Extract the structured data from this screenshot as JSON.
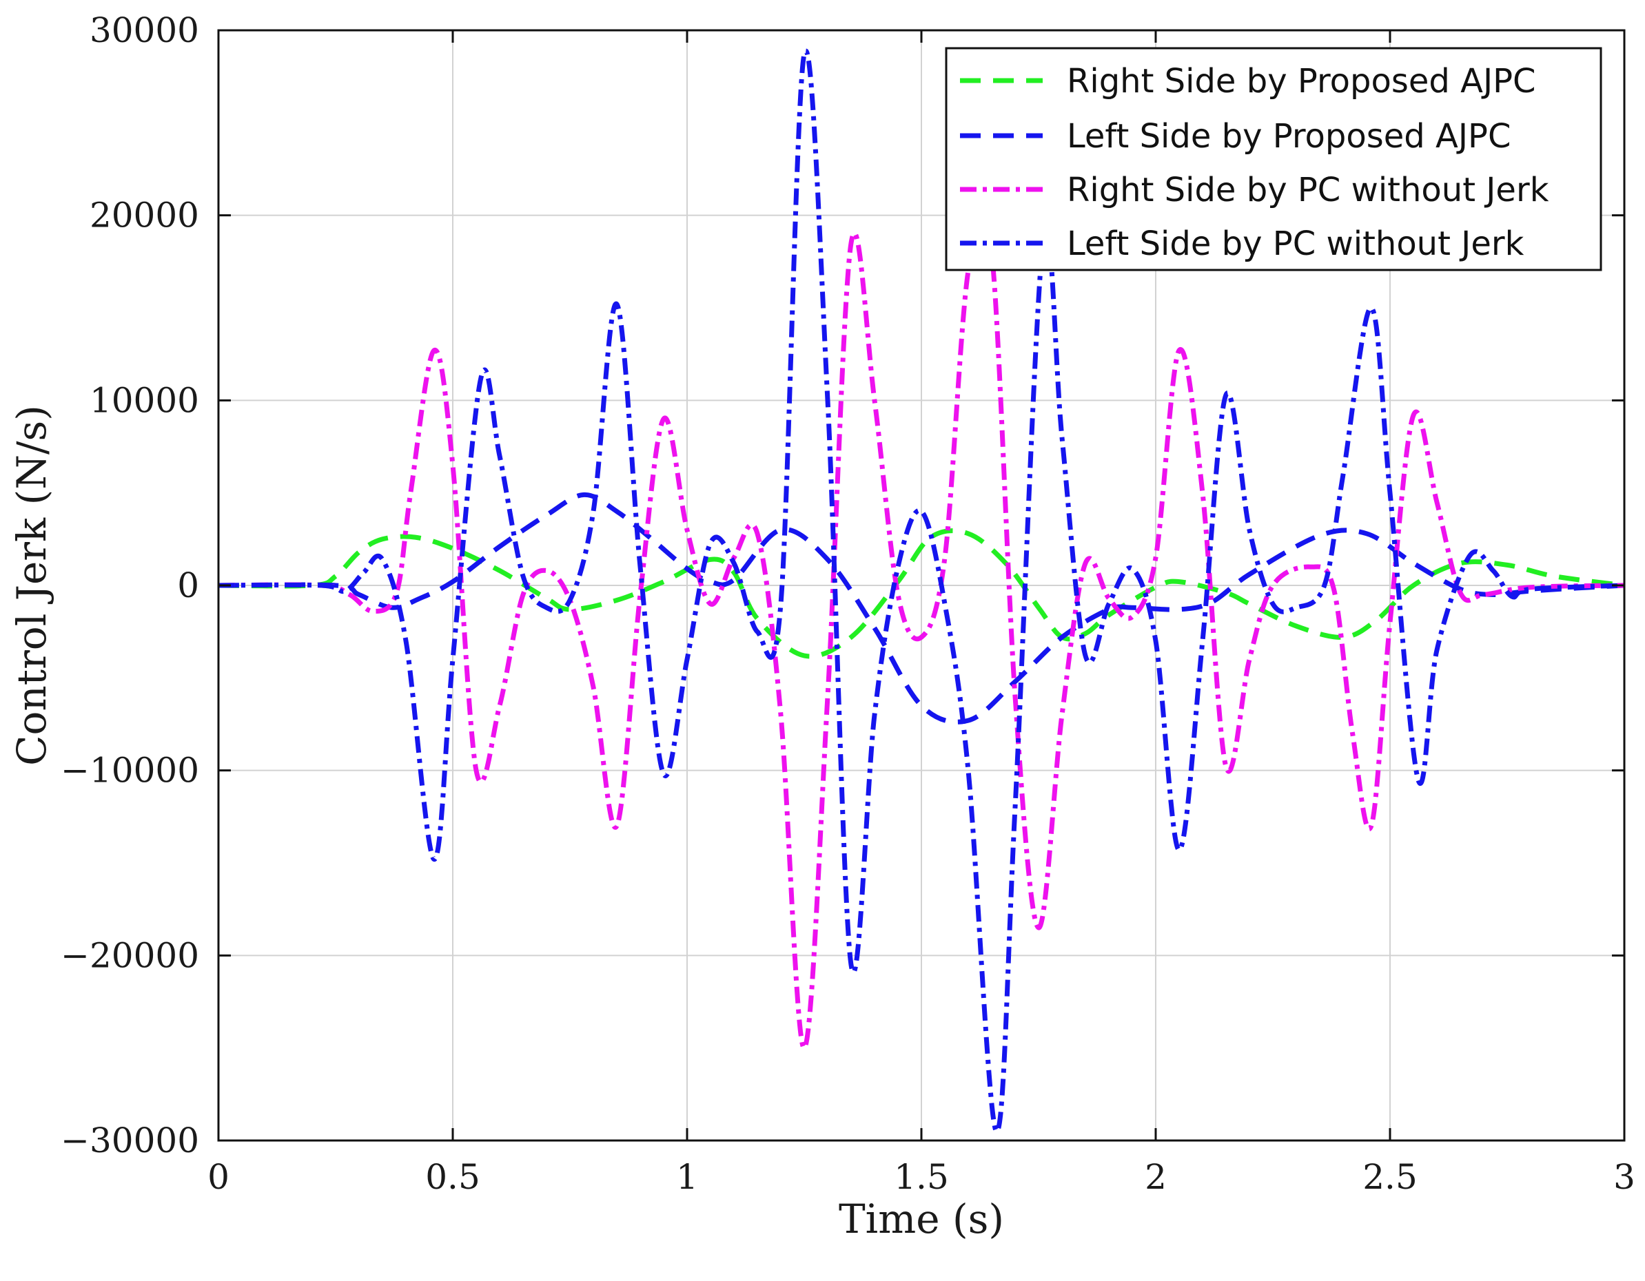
{
  "chart_data": {
    "type": "line",
    "title": "",
    "xlabel": "Time (s)",
    "ylabel": "Control Jerk (N/s)",
    "xlim": [
      0,
      3
    ],
    "ylim": [
      -30000,
      30000
    ],
    "grid": true,
    "legend_position": "top-right",
    "x_ticks": [
      {
        "value": 0,
        "label": "0"
      },
      {
        "value": 0.5,
        "label": "0.5"
      },
      {
        "value": 1,
        "label": "1"
      },
      {
        "value": 1.5,
        "label": "1.5"
      },
      {
        "value": 2,
        "label": "2"
      },
      {
        "value": 2.5,
        "label": "2.5"
      },
      {
        "value": 3,
        "label": "3"
      }
    ],
    "y_ticks": [
      {
        "value": 30000,
        "label": "30000"
      },
      {
        "value": 20000,
        "label": "20000"
      },
      {
        "value": 10000,
        "label": "10000"
      },
      {
        "value": 0,
        "label": "0"
      },
      {
        "value": -10000,
        "label": "−10000"
      },
      {
        "value": -20000,
        "label": "−20000"
      },
      {
        "value": -30000,
        "label": "−30000"
      }
    ],
    "series": [
      {
        "name": "Right Side by Proposed AJPC",
        "color": "#22ee22",
        "style": "dashed",
        "points": [
          [
            0,
            0
          ],
          [
            0.2,
            0
          ],
          [
            0.25,
            500
          ],
          [
            0.3,
            1800
          ],
          [
            0.35,
            2500
          ],
          [
            0.42,
            2600
          ],
          [
            0.5,
            2000
          ],
          [
            0.6,
            800
          ],
          [
            0.7,
            -700
          ],
          [
            0.75,
            -1300
          ],
          [
            0.85,
            -800
          ],
          [
            0.95,
            200
          ],
          [
            1.05,
            1400
          ],
          [
            1.1,
            700
          ],
          [
            1.15,
            -1800
          ],
          [
            1.25,
            -3800
          ],
          [
            1.35,
            -2800
          ],
          [
            1.45,
            200
          ],
          [
            1.52,
            2600
          ],
          [
            1.6,
            2800
          ],
          [
            1.68,
            1200
          ],
          [
            1.75,
            -1200
          ],
          [
            1.8,
            -2800
          ],
          [
            1.85,
            -2600
          ],
          [
            1.9,
            -1600
          ],
          [
            2.0,
            -100
          ],
          [
            2.05,
            200
          ],
          [
            2.15,
            -400
          ],
          [
            2.2,
            -1000
          ],
          [
            2.3,
            -2200
          ],
          [
            2.4,
            -2800
          ],
          [
            2.47,
            -1900
          ],
          [
            2.55,
            0
          ],
          [
            2.65,
            1200
          ],
          [
            2.75,
            1100
          ],
          [
            2.85,
            500
          ],
          [
            3.0,
            0
          ]
        ]
      },
      {
        "name": "Left Side by Proposed AJPC",
        "color": "#1515ee",
        "style": "dashed",
        "points": [
          [
            0,
            0
          ],
          [
            0.25,
            0
          ],
          [
            0.3,
            -500
          ],
          [
            0.37,
            -1200
          ],
          [
            0.43,
            -700
          ],
          [
            0.5,
            200
          ],
          [
            0.6,
            2100
          ],
          [
            0.7,
            3800
          ],
          [
            0.78,
            4900
          ],
          [
            0.85,
            4000
          ],
          [
            0.92,
            2600
          ],
          [
            1.0,
            900
          ],
          [
            1.05,
            200
          ],
          [
            1.1,
            300
          ],
          [
            1.2,
            3000
          ],
          [
            1.3,
            1400
          ],
          [
            1.4,
            -2300
          ],
          [
            1.5,
            -6500
          ],
          [
            1.6,
            -7300
          ],
          [
            1.7,
            -5200
          ],
          [
            1.8,
            -2800
          ],
          [
            1.9,
            -1300
          ],
          [
            1.95,
            -1200
          ],
          [
            2.05,
            -1300
          ],
          [
            2.12,
            -900
          ],
          [
            2.2,
            600
          ],
          [
            2.35,
            2700
          ],
          [
            2.45,
            2800
          ],
          [
            2.55,
            1200
          ],
          [
            2.65,
            -200
          ],
          [
            2.72,
            -500
          ],
          [
            2.8,
            -300
          ],
          [
            3.0,
            0
          ]
        ]
      },
      {
        "name": "Right Side by PC without Jerk",
        "color": "#ee11ee",
        "style": "dashdot",
        "points": [
          [
            0,
            0
          ],
          [
            0.22,
            0
          ],
          [
            0.28,
            -500
          ],
          [
            0.33,
            -1400
          ],
          [
            0.38,
            -400
          ],
          [
            0.41,
            5000
          ],
          [
            0.46,
            12700
          ],
          [
            0.5,
            6500
          ],
          [
            0.55,
            -10000
          ],
          [
            0.6,
            -6500
          ],
          [
            0.65,
            -500
          ],
          [
            0.7,
            800
          ],
          [
            0.75,
            -800
          ],
          [
            0.8,
            -5500
          ],
          [
            0.85,
            -13000
          ],
          [
            0.9,
            -500
          ],
          [
            0.95,
            9000
          ],
          [
            1.0,
            3000
          ],
          [
            1.05,
            -1000
          ],
          [
            1.1,
            1500
          ],
          [
            1.15,
            2800
          ],
          [
            1.2,
            -7000
          ],
          [
            1.25,
            -25000
          ],
          [
            1.3,
            -6000
          ],
          [
            1.35,
            18500
          ],
          [
            1.4,
            10000
          ],
          [
            1.45,
            -500
          ],
          [
            1.5,
            -2800
          ],
          [
            1.55,
            1500
          ],
          [
            1.6,
            17000
          ],
          [
            1.65,
            18000
          ],
          [
            1.7,
            -6000
          ],
          [
            1.75,
            -18500
          ],
          [
            1.8,
            -7000
          ],
          [
            1.85,
            1200
          ],
          [
            1.9,
            -700
          ],
          [
            1.95,
            -1700
          ],
          [
            2.0,
            1500
          ],
          [
            2.05,
            12700
          ],
          [
            2.1,
            5000
          ],
          [
            2.15,
            -9800
          ],
          [
            2.2,
            -4000
          ],
          [
            2.25,
            0
          ],
          [
            2.33,
            1000
          ],
          [
            2.38,
            -200
          ],
          [
            2.42,
            -8000
          ],
          [
            2.46,
            -13000
          ],
          [
            2.5,
            -2000
          ],
          [
            2.55,
            9200
          ],
          [
            2.6,
            4500
          ],
          [
            2.65,
            -400
          ],
          [
            2.7,
            -500
          ],
          [
            2.8,
            -100
          ],
          [
            3.0,
            0
          ]
        ]
      },
      {
        "name": "Left Side by PC without Jerk",
        "color": "#1515ee",
        "style": "dashdot",
        "points": [
          [
            0,
            0
          ],
          [
            0.22,
            0
          ],
          [
            0.27,
            -300
          ],
          [
            0.31,
            700
          ],
          [
            0.35,
            1400
          ],
          [
            0.4,
            -3000
          ],
          [
            0.46,
            -14800
          ],
          [
            0.5,
            -4000
          ],
          [
            0.56,
            11200
          ],
          [
            0.6,
            7000
          ],
          [
            0.65,
            500
          ],
          [
            0.7,
            -1200
          ],
          [
            0.75,
            -800
          ],
          [
            0.8,
            4000
          ],
          [
            0.85,
            15200
          ],
          [
            0.9,
            1000
          ],
          [
            0.95,
            -10200
          ],
          [
            1.0,
            -4000
          ],
          [
            1.05,
            2300
          ],
          [
            1.1,
            1200
          ],
          [
            1.15,
            -2500
          ],
          [
            1.2,
            -1000
          ],
          [
            1.25,
            28700
          ],
          [
            1.3,
            10000
          ],
          [
            1.35,
            -20500
          ],
          [
            1.4,
            -7000
          ],
          [
            1.45,
            1000
          ],
          [
            1.5,
            4000
          ],
          [
            1.55,
            -1000
          ],
          [
            1.6,
            -10000
          ],
          [
            1.66,
            -29500
          ],
          [
            1.7,
            -12000
          ],
          [
            1.76,
            18700
          ],
          [
            1.8,
            8000
          ],
          [
            1.85,
            -3800
          ],
          [
            1.9,
            -1000
          ],
          [
            1.95,
            900
          ],
          [
            2.0,
            -3000
          ],
          [
            2.05,
            -14300
          ],
          [
            2.1,
            -3000
          ],
          [
            2.15,
            10300
          ],
          [
            2.2,
            3000
          ],
          [
            2.25,
            -1000
          ],
          [
            2.3,
            -1200
          ],
          [
            2.36,
            0
          ],
          [
            2.4,
            6000
          ],
          [
            2.46,
            15000
          ],
          [
            2.5,
            5000
          ],
          [
            2.56,
            -10500
          ],
          [
            2.6,
            -3500
          ],
          [
            2.67,
            1600
          ],
          [
            2.72,
            800
          ],
          [
            2.76,
            -600
          ],
          [
            2.8,
            -200
          ],
          [
            3.0,
            0
          ]
        ]
      }
    ]
  }
}
